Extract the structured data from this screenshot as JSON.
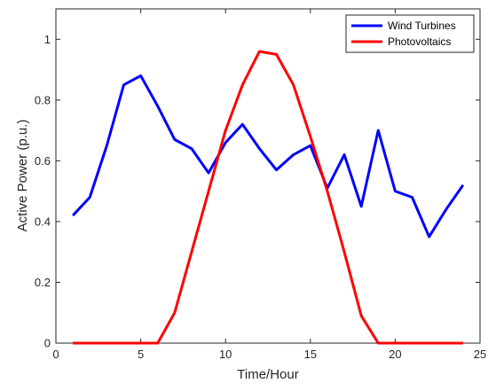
{
  "chart_data": {
    "type": "line",
    "title": "",
    "xlabel": "Time/Hour",
    "ylabel": "Active Power (p.u.)",
    "xlim": [
      0,
      25
    ],
    "ylim": [
      0,
      1.1
    ],
    "x_ticks": [
      0,
      5,
      10,
      15,
      20,
      25
    ],
    "y_ticks": [
      0,
      0.2,
      0.4,
      0.6,
      0.8,
      1
    ],
    "x_tick_labels": [
      "0",
      "5",
      "10",
      "15",
      "20",
      "25"
    ],
    "y_tick_labels": [
      "0",
      "0.2",
      "0.4",
      "0.6",
      "0.8",
      "1"
    ],
    "grid": false,
    "legend_position": "top-right",
    "x": [
      1,
      2,
      3,
      4,
      5,
      6,
      7,
      8,
      9,
      10,
      11,
      12,
      13,
      14,
      15,
      16,
      17,
      18,
      19,
      20,
      21,
      22,
      23,
      24
    ],
    "series": [
      {
        "name": "Wind Turbines",
        "color": "#0000ff",
        "values": [
          0.42,
          0.48,
          0.65,
          0.85,
          0.88,
          0.78,
          0.67,
          0.64,
          0.56,
          0.66,
          0.72,
          0.64,
          0.57,
          0.62,
          0.65,
          0.51,
          0.62,
          0.45,
          0.7,
          0.5,
          0.48,
          0.35,
          0.44,
          0.52
        ]
      },
      {
        "name": "Photovoltaics",
        "color": "#ff0000",
        "values": [
          0,
          0,
          0,
          0,
          0,
          0,
          0.1,
          0.3,
          0.5,
          0.7,
          0.85,
          0.96,
          0.95,
          0.85,
          0.68,
          0.5,
          0.3,
          0.09,
          0,
          0,
          0,
          0,
          0,
          0
        ]
      }
    ]
  }
}
